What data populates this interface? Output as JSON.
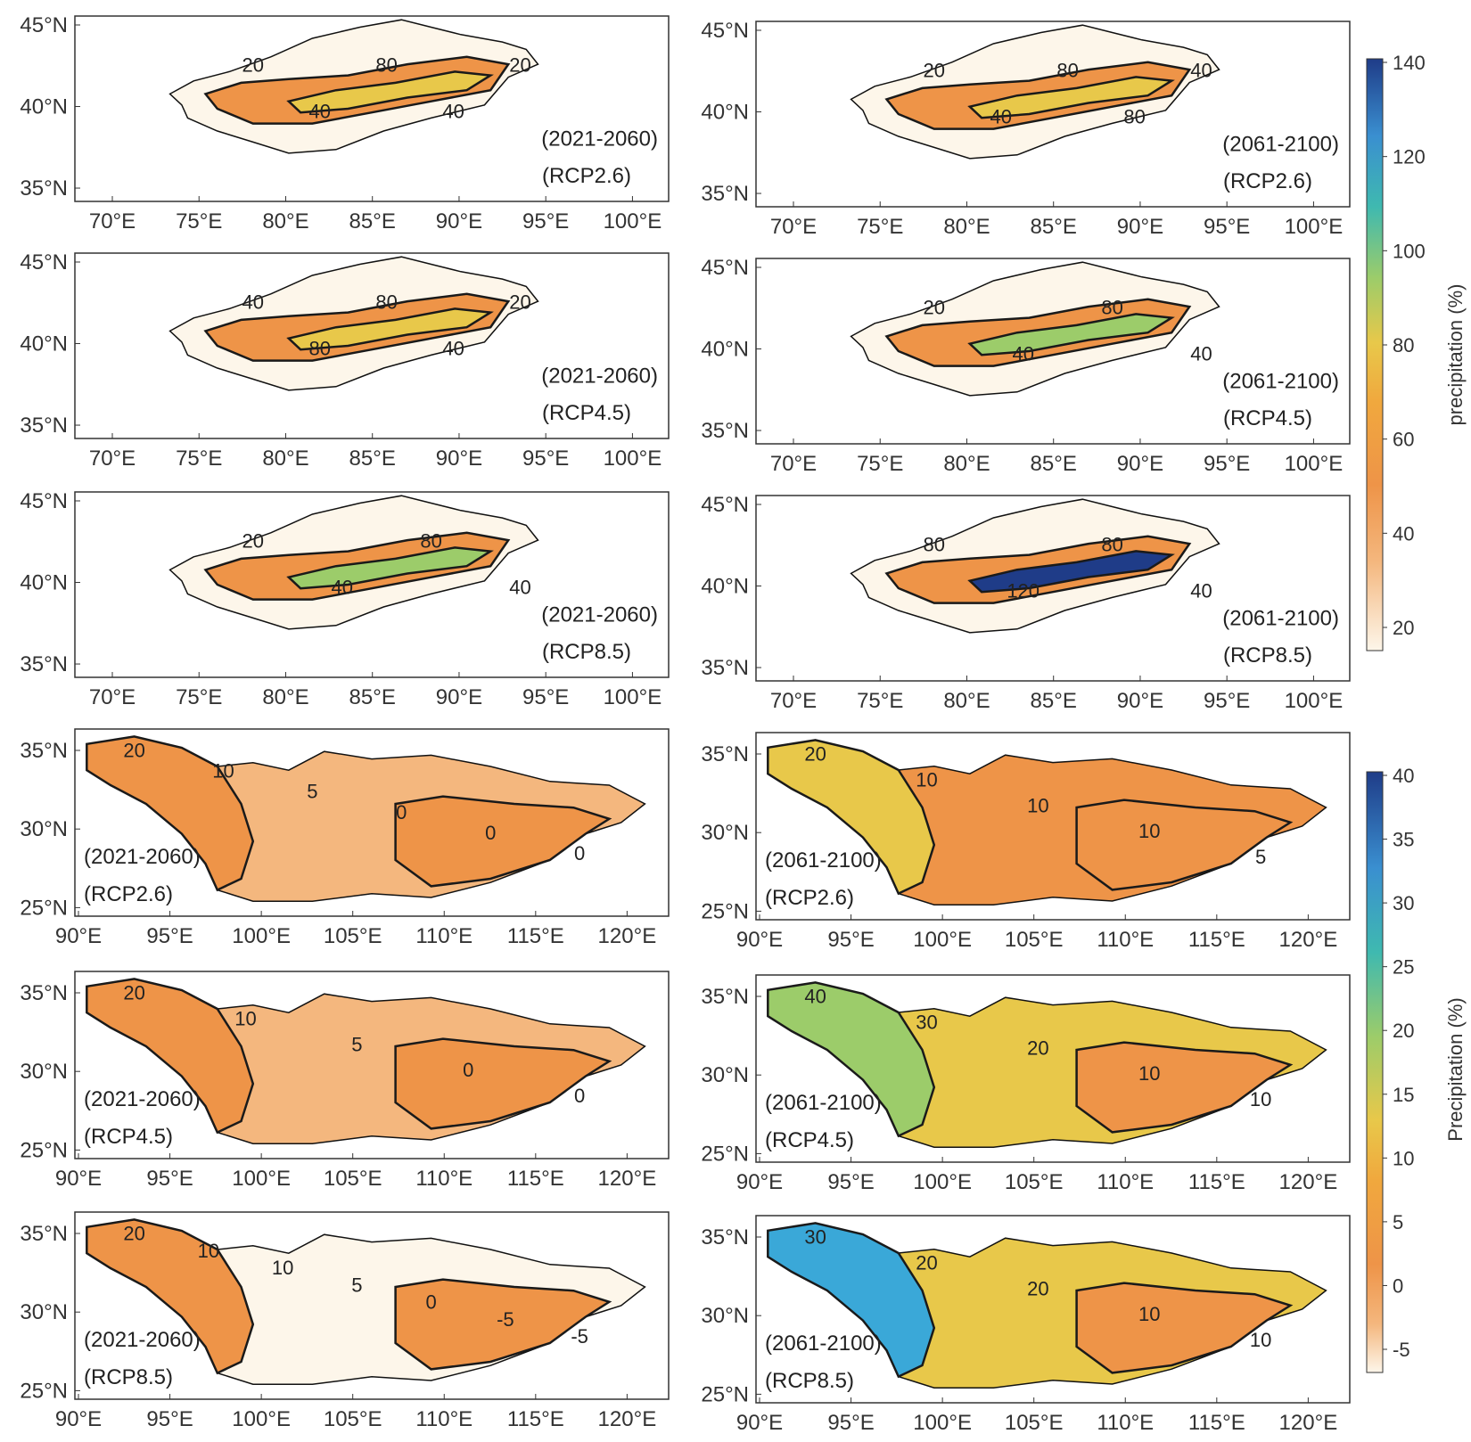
{
  "figure": {
    "top_group": {
      "lat_ticks": [
        "45°N",
        "40°N",
        "35°N"
      ],
      "lon_ticks": [
        "70°E",
        "75°E",
        "80°E",
        "85°E",
        "90°E",
        "95°E",
        "100°E"
      ],
      "panels": [
        {
          "period": "(2021-2060)",
          "scenario": "(RCP2.6)",
          "contours": [
            "20",
            "40",
            "80",
            "40",
            "20"
          ],
          "fill_level": 0.35
        },
        {
          "period": "(2061-2100)",
          "scenario": "(RCP2.6)",
          "contours": [
            "20",
            "40",
            "80",
            "80",
            "40"
          ],
          "fill_level": 0.45
        },
        {
          "period": "(2021-2060)",
          "scenario": "(RCP4.5)",
          "contours": [
            "40",
            "80",
            "80",
            "40",
            "20"
          ],
          "fill_level": 0.4
        },
        {
          "period": "(2061-2100)",
          "scenario": "(RCP4.5)",
          "contours": [
            "20",
            "40",
            "80",
            "40"
          ],
          "fill_level": 0.55
        },
        {
          "period": "(2021-2060)",
          "scenario": "(RCP8.5)",
          "contours": [
            "20",
            "40",
            "80",
            "40"
          ],
          "fill_level": 0.6
        },
        {
          "period": "(2061-2100)",
          "scenario": "(RCP8.5)",
          "contours": [
            "80",
            "120",
            "80",
            "40"
          ],
          "fill_level": 0.9
        }
      ],
      "colorbar": {
        "ticks": [
          "140",
          "120",
          "100",
          "80",
          "60",
          "40",
          "20"
        ],
        "label": "precipitation (%)"
      }
    },
    "bottom_group": {
      "lat_ticks": [
        "35°N",
        "30°N",
        "25°N"
      ],
      "lon_ticks": [
        "90°E",
        "95°E",
        "100°E",
        "105°E",
        "110°E",
        "115°E",
        "120°E"
      ],
      "panels": [
        {
          "period": "(2021-2060)",
          "scenario": "(RCP2.6)",
          "contours": [
            "20",
            "10",
            "5",
            "0",
            "0",
            "0"
          ],
          "fill_level": 0.2
        },
        {
          "period": "(2061-2100)",
          "scenario": "(RCP2.6)",
          "contours": [
            "20",
            "10",
            "10",
            "10",
            "5"
          ],
          "fill_level": 0.35
        },
        {
          "period": "(2021-2060)",
          "scenario": "(RCP4.5)",
          "contours": [
            "20",
            "10",
            "5",
            "0",
            "0"
          ],
          "fill_level": 0.2
        },
        {
          "period": "(2061-2100)",
          "scenario": "(RCP4.5)",
          "contours": [
            "40",
            "30",
            "20",
            "10",
            "10"
          ],
          "fill_level": 0.5
        },
        {
          "period": "(2021-2060)",
          "scenario": "(RCP8.5)",
          "contours": [
            "20",
            "10",
            "10",
            "5",
            "0",
            "-5",
            "-5"
          ],
          "fill_level": 0.1
        },
        {
          "period": "(2061-2100)",
          "scenario": "(RCP8.5)",
          "contours": [
            "30",
            "20",
            "20",
            "10",
            "10"
          ],
          "fill_level": 0.65
        }
      ],
      "colorbar": {
        "ticks": [
          "40",
          "35",
          "30",
          "25",
          "20",
          "15",
          "10",
          "5",
          "0",
          "-5"
        ],
        "label": "Precipitation (%)"
      }
    },
    "colors": {
      "light": "#fdf6ea",
      "orange": "#ee9448",
      "yellow": "#e8c84a",
      "green": "#9ccc6a",
      "cyan": "#3aa8d8",
      "navy": "#1f3c88",
      "contour": "#1a1a1a"
    }
  }
}
